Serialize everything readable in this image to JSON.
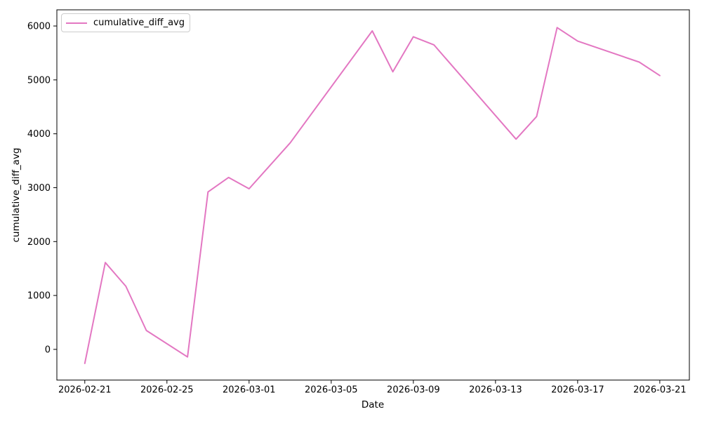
{
  "chart_data": {
    "type": "line",
    "title": "",
    "xlabel": "Date",
    "ylabel": "cumulative_diff_avg",
    "grid": false,
    "background_color": "#ffffff",
    "x_start": "2026-02-21",
    "x_tick_labels": [
      "2026-02-21",
      "2026-02-25",
      "2026-03-01",
      "2026-03-05",
      "2026-03-09",
      "2026-03-13",
      "2026-03-17",
      "2026-03-21"
    ],
    "y_ticks": [
      0,
      1000,
      2000,
      3000,
      4000,
      5000,
      6000
    ],
    "xlim_days_from_start": [
      -1.36,
      29.44
    ],
    "ylim": [
      -570,
      6300
    ],
    "legend": {
      "position": "upper-left",
      "entries": [
        {
          "label": "cumulative_diff_avg",
          "color": "#e377c2"
        }
      ]
    },
    "series": [
      {
        "name": "cumulative_diff_avg",
        "color": "#e377c2",
        "line_width": 2,
        "points": [
          {
            "date": "2026-02-21",
            "value": -260
          },
          {
            "date": "2026-02-22",
            "value": 1610
          },
          {
            "date": "2026-02-23",
            "value": 1170
          },
          {
            "date": "2026-02-24",
            "value": 350
          },
          {
            "date": "2026-02-26",
            "value": -140
          },
          {
            "date": "2026-02-27",
            "value": 2920
          },
          {
            "date": "2026-02-28",
            "value": 3190
          },
          {
            "date": "2026-03-01",
            "value": 2980
          },
          {
            "date": "2026-03-03",
            "value": 3830
          },
          {
            "date": "2026-03-07",
            "value": 5910
          },
          {
            "date": "2026-03-08",
            "value": 5150
          },
          {
            "date": "2026-03-09",
            "value": 5800
          },
          {
            "date": "2026-03-10",
            "value": 5650
          },
          {
            "date": "2026-03-14",
            "value": 3900
          },
          {
            "date": "2026-03-15",
            "value": 4320
          },
          {
            "date": "2026-03-16",
            "value": 5970
          },
          {
            "date": "2026-03-17",
            "value": 5720
          },
          {
            "date": "2026-03-20",
            "value": 5330
          },
          {
            "date": "2026-03-21",
            "value": 5080
          }
        ]
      }
    ]
  }
}
